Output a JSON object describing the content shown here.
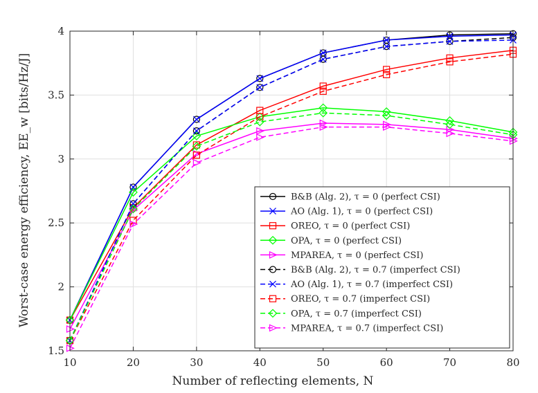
{
  "chart_data": {
    "type": "line",
    "title": "",
    "xlabel": "Number of reflecting elements, N",
    "ylabel": "Worst-case energy efficiency, EE_w [bits/Hz/J]",
    "xlim": [
      10,
      80
    ],
    "ylim": [
      1.5,
      4
    ],
    "grid": true,
    "legend_position": "bottom-right",
    "x": [
      10,
      20,
      30,
      40,
      50,
      60,
      70,
      80
    ],
    "xticks": [
      "10",
      "20",
      "30",
      "40",
      "50",
      "60",
      "70",
      "80"
    ],
    "yticks": [
      "1.5",
      "2",
      "2.5",
      "3",
      "3.5",
      "4"
    ],
    "series": [
      {
        "name": "B&B (Alg. 2), τ = 0 (perfect CSI)",
        "color": "#000000",
        "dash": "solid",
        "marker": "circle",
        "values": [
          1.74,
          2.78,
          3.31,
          3.63,
          3.83,
          3.93,
          3.97,
          3.98
        ]
      },
      {
        "name": "AO (Alg. 1), τ = 0 (perfect CSI)",
        "color": "#0000ff",
        "dash": "solid",
        "marker": "x",
        "values": [
          1.74,
          2.78,
          3.31,
          3.63,
          3.83,
          3.93,
          3.96,
          3.97
        ]
      },
      {
        "name": "OREO, τ = 0 (perfect CSI)",
        "color": "#ff0000",
        "dash": "solid",
        "marker": "square",
        "values": [
          1.74,
          2.62,
          3.11,
          3.38,
          3.57,
          3.7,
          3.79,
          3.85
        ]
      },
      {
        "name": "OPA, τ = 0 (perfect CSI)",
        "color": "#00ff00",
        "dash": "solid",
        "marker": "diamond",
        "values": [
          1.74,
          2.74,
          3.18,
          3.33,
          3.4,
          3.37,
          3.3,
          3.21
        ]
      },
      {
        "name": "MPAREA, τ = 0 (perfect CSI)",
        "color": "#ff00ff",
        "dash": "solid",
        "marker": "triangle-right",
        "values": [
          1.67,
          2.6,
          3.04,
          3.22,
          3.28,
          3.27,
          3.23,
          3.16
        ]
      },
      {
        "name": "B&B (Alg. 2), τ = 0.7 (imperfect CSI)",
        "color": "#000000",
        "dash": "dashed",
        "marker": "circle",
        "values": [
          1.58,
          2.65,
          3.22,
          3.56,
          3.78,
          3.88,
          3.92,
          3.95
        ]
      },
      {
        "name": "AO (Alg. 1), τ = 0.7 (imperfect CSI)",
        "color": "#0000ff",
        "dash": "dashed",
        "marker": "x",
        "values": [
          1.58,
          2.65,
          3.22,
          3.56,
          3.78,
          3.88,
          3.92,
          3.93
        ]
      },
      {
        "name": "OREO, τ = 0.7 (imperfect CSI)",
        "color": "#ff0000",
        "dash": "dashed",
        "marker": "square",
        "values": [
          1.58,
          2.52,
          3.03,
          3.33,
          3.53,
          3.66,
          3.76,
          3.82
        ]
      },
      {
        "name": "OPA, τ = 0.7 (imperfect CSI)",
        "color": "#00ff00",
        "dash": "dashed",
        "marker": "diamond",
        "values": [
          1.58,
          2.61,
          3.1,
          3.29,
          3.36,
          3.34,
          3.27,
          3.19
        ]
      },
      {
        "name": "MPAREA, τ = 0.7 (imperfect CSI)",
        "color": "#ff00ff",
        "dash": "dashed",
        "marker": "triangle-right",
        "values": [
          1.52,
          2.49,
          2.97,
          3.17,
          3.25,
          3.25,
          3.2,
          3.14
        ]
      }
    ]
  }
}
